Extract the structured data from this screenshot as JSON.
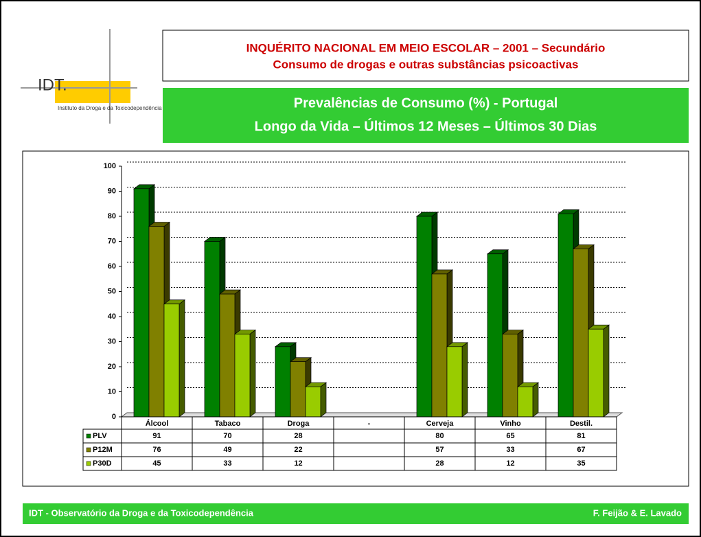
{
  "logo": {
    "name": "IDT.",
    "caption": "Instituto da Droga e da Toxicodependência"
  },
  "header": {
    "title": [
      "INQUÉRITO NACIONAL EM MEIO ESCOLAR – 2001 – Secundário",
      "Consumo de drogas e outras substâncias psicoactivas"
    ],
    "subtitle": [
      "Prevalências de Consumo (%) - Portugal",
      "Longo da Vida – Últimos 12 Meses – Últimos 30 Dias"
    ]
  },
  "chart_data": {
    "type": "bar",
    "categories": [
      "Álcool",
      "Tabaco",
      "Droga",
      "-",
      "Cerveja",
      "Vinho",
      "Destil."
    ],
    "series": [
      {
        "name": "PLV",
        "color": "#008000",
        "values": [
          91,
          70,
          28,
          null,
          80,
          65,
          81
        ]
      },
      {
        "name": "P12M",
        "color": "#808000",
        "values": [
          76,
          49,
          22,
          null,
          57,
          33,
          67
        ]
      },
      {
        "name": "P30D",
        "color": "#99cc00",
        "values": [
          45,
          33,
          12,
          null,
          28,
          12,
          35
        ]
      }
    ],
    "ylim": [
      0,
      100
    ],
    "yticks": [
      0,
      10,
      20,
      30,
      40,
      50,
      60,
      70,
      80,
      90,
      100
    ],
    "grid": true
  },
  "footer": {
    "left": "IDT - Observatório da Droga e da Toxicodependência",
    "right": "F. Feijão & E. Lavado"
  }
}
